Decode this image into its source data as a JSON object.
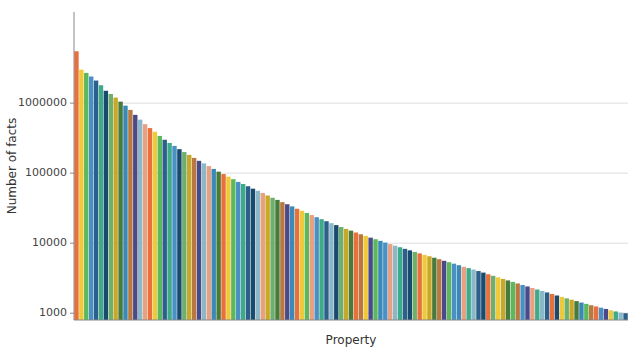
{
  "chart_data": {
    "type": "bar",
    "xlabel": "Property",
    "ylabel": "Number of facts",
    "categories": [
      null,
      null,
      null,
      null,
      null,
      null,
      null,
      null,
      null,
      null,
      null,
      null,
      null,
      null,
      null,
      null,
      null,
      null,
      null,
      null,
      null,
      null,
      null,
      null,
      null,
      null,
      null,
      null,
      null,
      null,
      null,
      null,
      null,
      null,
      null,
      null,
      null,
      null,
      null,
      null,
      null,
      null,
      null,
      null,
      null,
      null,
      null,
      null,
      null,
      null,
      null,
      null,
      null,
      null,
      null,
      null,
      null,
      null,
      null,
      null,
      null,
      null,
      null,
      null,
      null,
      null,
      null,
      null,
      null,
      null,
      null,
      null,
      null,
      null,
      null,
      null,
      null,
      null,
      null,
      null,
      null,
      null,
      null,
      null,
      null,
      null,
      null,
      null,
      null,
      null,
      null,
      null,
      null,
      null,
      null,
      null,
      null,
      null,
      null,
      null,
      null,
      null,
      null,
      null,
      null,
      null,
      null,
      null,
      null,
      null,
      null,
      null,
      null
    ],
    "values": [
      5500000,
      3000000,
      2700000,
      2400000,
      2100000,
      1800000,
      1500000,
      1350000,
      1200000,
      1050000,
      920000,
      800000,
      680000,
      580000,
      500000,
      440000,
      390000,
      340000,
      300000,
      270000,
      245000,
      220000,
      200000,
      182000,
      165000,
      150000,
      138000,
      126000,
      115000,
      105000,
      97000,
      89000,
      82000,
      75000,
      70000,
      65000,
      60000,
      56000,
      52000,
      48000,
      44500,
      41500,
      38500,
      36000,
      33500,
      31000,
      29000,
      27000,
      25200,
      23500,
      22000,
      20600,
      19300,
      18100,
      17000,
      16000,
      15100,
      14200,
      13400,
      12700,
      12000,
      11400,
      10800,
      10200,
      9700,
      9200,
      8750,
      8300,
      7900,
      7500,
      7150,
      6800,
      6500,
      6200,
      5900,
      5600,
      5350,
      5100,
      4850,
      4600,
      4400,
      4200,
      4000,
      3800,
      3600,
      3420,
      3250,
      3090,
      2940,
      2800,
      2660,
      2530,
      2410,
      2290,
      2180,
      2080,
      1980,
      1880,
      1790,
      1710,
      1630,
      1560,
      1490,
      1420,
      1360,
      1300,
      1250,
      1200,
      1150,
      1100,
      1060,
      1020,
      1000
    ],
    "colors": [
      "#E8703A",
      "#F0C93A",
      "#5CB85C",
      "#4A90C4",
      "#2C5F8A",
      "#3DAA8A",
      "#1A4A6E",
      "#6DAF6D",
      "#C8A82A",
      "#4A7A3A",
      "#3A8AB8",
      "#B87840",
      "#4A4A8A",
      "#8AB8C8",
      "#E8A080",
      "#E8703A",
      "#F0C93A",
      "#5CB85C",
      "#2C5F8A",
      "#3DAA8A",
      "#4A90C4",
      "#1A4A6E",
      "#6DAF6D",
      "#C8A82A",
      "#B87840",
      "#4A4A8A",
      "#8AB8C8",
      "#E8A080",
      "#3A8AB8",
      "#4A7A3A",
      "#E8703A",
      "#F0C93A",
      "#5CB85C",
      "#4A90C4",
      "#3DAA8A",
      "#2C5F8A",
      "#1A4A6E",
      "#8AB8C8",
      "#E8A080",
      "#C8A82A",
      "#6DAF6D",
      "#4A7A3A",
      "#B87840",
      "#4A4A8A",
      "#3A8AB8",
      "#E8703A",
      "#F0C93A",
      "#5CB85C",
      "#E8A080",
      "#4A90C4",
      "#3DAA8A",
      "#2C5F8A",
      "#8AB8C8",
      "#1A4A6E",
      "#6DAF6D",
      "#C8A82A",
      "#4A7A3A",
      "#E8703A",
      "#B87840",
      "#F0C93A",
      "#4A4A8A",
      "#5CB85C",
      "#3A8AB8",
      "#4A90C4",
      "#E8A080",
      "#8AB8C8",
      "#3DAA8A",
      "#2C5F8A",
      "#1A4A6E",
      "#6DAF6D",
      "#E8703A",
      "#F0C93A",
      "#C8A82A",
      "#4A7A3A",
      "#B87840",
      "#4A4A8A",
      "#5CB85C",
      "#4A90C4",
      "#3A8AB8",
      "#E8A080",
      "#3DAA8A",
      "#8AB8C8",
      "#2C5F8A",
      "#1A4A6E",
      "#E8703A",
      "#6DAF6D",
      "#F0C93A",
      "#C8A82A",
      "#4A7A3A",
      "#5CB85C",
      "#B87840",
      "#4A90C4",
      "#4A4A8A",
      "#E8A080",
      "#3DAA8A",
      "#8AB8C8",
      "#2C5F8A",
      "#E8703A",
      "#1A4A6E",
      "#F0C93A",
      "#6DAF6D",
      "#C8A82A",
      "#4A7A3A",
      "#3A8AB8",
      "#5CB85C",
      "#B87840",
      "#E8703A",
      "#4A90C4",
      "#4A4A8A",
      "#F0C93A",
      "#3DAA8A",
      "#8AB8C8",
      "#2C5F8A"
    ],
    "log": "y",
    "ylim": [
      800,
      20000000
    ],
    "yticks": [
      1000,
      10000,
      100000,
      1000000
    ],
    "grid": true,
    "tick_labels": "y"
  }
}
